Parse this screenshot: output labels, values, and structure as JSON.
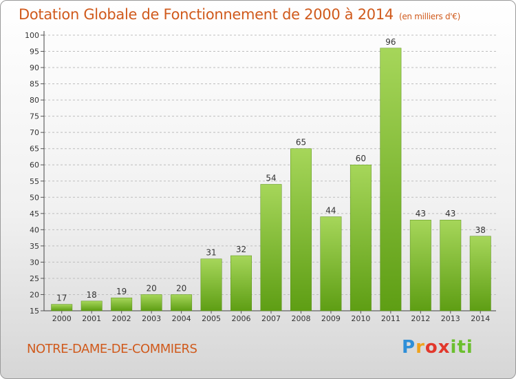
{
  "header": {
    "title": "Dotation Globale de Fonctionnement de 2000 à 2014",
    "unit": "(en milliers d'€)"
  },
  "footer": {
    "municipality": "NOTRE-DAME-DE-COMMIERS",
    "logo": {
      "text": "Proxiti",
      "letters": [
        "P",
        "r",
        "o",
        "x",
        "i",
        "t",
        "i"
      ],
      "colors": [
        "#2f8fd8",
        "#f0a21c",
        "#e2382c",
        "#6bbf2e"
      ]
    }
  },
  "colors": {
    "bar_top": "#a6d65a",
    "bar_bottom": "#5e9e14",
    "title": "#d05a1c"
  },
  "chart_data": {
    "type": "bar",
    "title": "Dotation Globale de Fonctionnement de 2000 à 2014",
    "subtitle": "(en milliers d'€)",
    "xlabel": "",
    "ylabel": "",
    "categories": [
      "2000",
      "2001",
      "2002",
      "2003",
      "2004",
      "2005",
      "2006",
      "2007",
      "2008",
      "2009",
      "2010",
      "2011",
      "2012",
      "2013",
      "2014"
    ],
    "values": [
      17,
      18,
      19,
      20,
      20,
      31,
      32,
      54,
      65,
      44,
      60,
      96,
      43,
      43,
      38
    ],
    "ylim": [
      15,
      100
    ],
    "yticks": [
      15,
      20,
      25,
      30,
      35,
      40,
      45,
      50,
      55,
      60,
      65,
      70,
      75,
      80,
      85,
      90,
      95,
      100
    ],
    "grid": true,
    "legend": "none"
  }
}
